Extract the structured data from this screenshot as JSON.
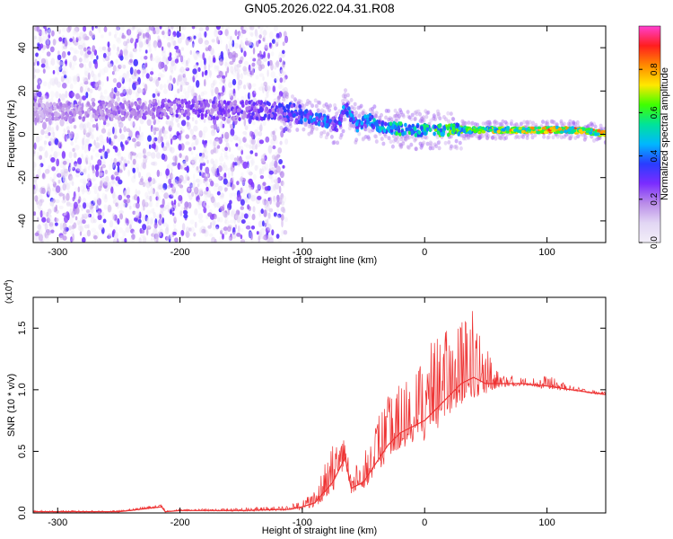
{
  "title": "GN05.2026.022.04.31.R08",
  "colors": {
    "line": "#ee3333",
    "frame": "#000000",
    "background": "#ffffff",
    "colormap": [
      "#f2eef8",
      "#e2d6f4",
      "#b98be8",
      "#7b2cff",
      "#2a3dff",
      "#00b7ff",
      "#00e39a",
      "#3fff00",
      "#ffe800",
      "#ff8a00",
      "#ff1e1e",
      "#ff3fd0"
    ]
  },
  "chart_data": [
    {
      "type": "heatmap",
      "xlabel": "Height of straight line (km)",
      "ylabel": "Frequency (Hz)",
      "xlim": [
        -320,
        148
      ],
      "ylim": [
        -50,
        50
      ],
      "xticks": [
        -300,
        -200,
        -100,
        0,
        100
      ],
      "yticks": [
        -40,
        -20,
        0,
        20,
        40
      ],
      "grid": false,
      "colorbar": {
        "label": "Normalized spectral amplitude",
        "range": [
          0,
          1
        ],
        "ticks": [
          0.0,
          0.2,
          0.4,
          0.6,
          0.8
        ]
      },
      "ridge": {
        "x": [
          -320,
          -240,
          -200,
          -160,
          -120,
          -100,
          -80,
          -70,
          -65,
          -55,
          -45,
          -35,
          -25,
          -15,
          0,
          20,
          40,
          60,
          80,
          100,
          120,
          140,
          148
        ],
        "frequency": [
          10,
          11,
          12,
          11,
          11,
          9,
          6,
          4,
          13,
          4,
          7,
          3,
          3,
          2,
          2,
          2,
          2,
          2,
          2,
          2,
          2,
          1,
          0
        ],
        "amplitude": [
          0.2,
          0.25,
          0.3,
          0.3,
          0.35,
          0.45,
          0.45,
          0.4,
          0.5,
          0.45,
          0.5,
          0.55,
          0.6,
          0.6,
          0.65,
          0.7,
          0.75,
          0.8,
          0.85,
          0.9,
          0.9,
          0.88,
          0.8
        ]
      },
      "noise_region_x": [
        -320,
        -113
      ]
    },
    {
      "type": "line",
      "xlabel": "Height of straight line (km)",
      "ylabel": "SNR (10 * v/v)",
      "y_multiplier": "(x10^4)",
      "xlim": [
        -320,
        148
      ],
      "ylim": [
        0,
        1.75
      ],
      "xticks": [
        -300,
        -200,
        -100,
        0,
        100
      ],
      "yticks": [
        0.0,
        0.5,
        1.0,
        1.5
      ],
      "grid": false,
      "series": [
        {
          "x": [
            -320,
            -250,
            -215,
            -212,
            -200,
            -150,
            -110,
            -100,
            -90,
            -75,
            -65,
            -60,
            -50,
            -40,
            -30,
            -20,
            -10,
            0,
            10,
            20,
            30,
            40,
            50,
            60,
            70,
            80,
            90,
            100,
            120,
            148
          ],
          "y": [
            0.01,
            0.01,
            0.05,
            0.01,
            0.02,
            0.02,
            0.03,
            0.05,
            0.08,
            0.25,
            0.45,
            0.2,
            0.25,
            0.4,
            0.55,
            0.65,
            0.7,
            0.75,
            0.85,
            0.95,
            1.05,
            1.1,
            1.05,
            1.05,
            1.05,
            1.05,
            1.04,
            1.03,
            1.0,
            0.96
          ],
          "envelope_max": [
            0.02,
            0.02,
            0.07,
            0.02,
            0.03,
            0.04,
            0.06,
            0.12,
            0.2,
            0.55,
            0.65,
            0.35,
            0.45,
            0.8,
            0.95,
            1.05,
            1.2,
            1.3,
            1.45,
            1.5,
            1.6,
            1.72,
            1.35,
            1.15,
            1.12,
            1.1,
            1.1,
            1.12,
            1.03,
            0.98
          ]
        }
      ]
    }
  ]
}
